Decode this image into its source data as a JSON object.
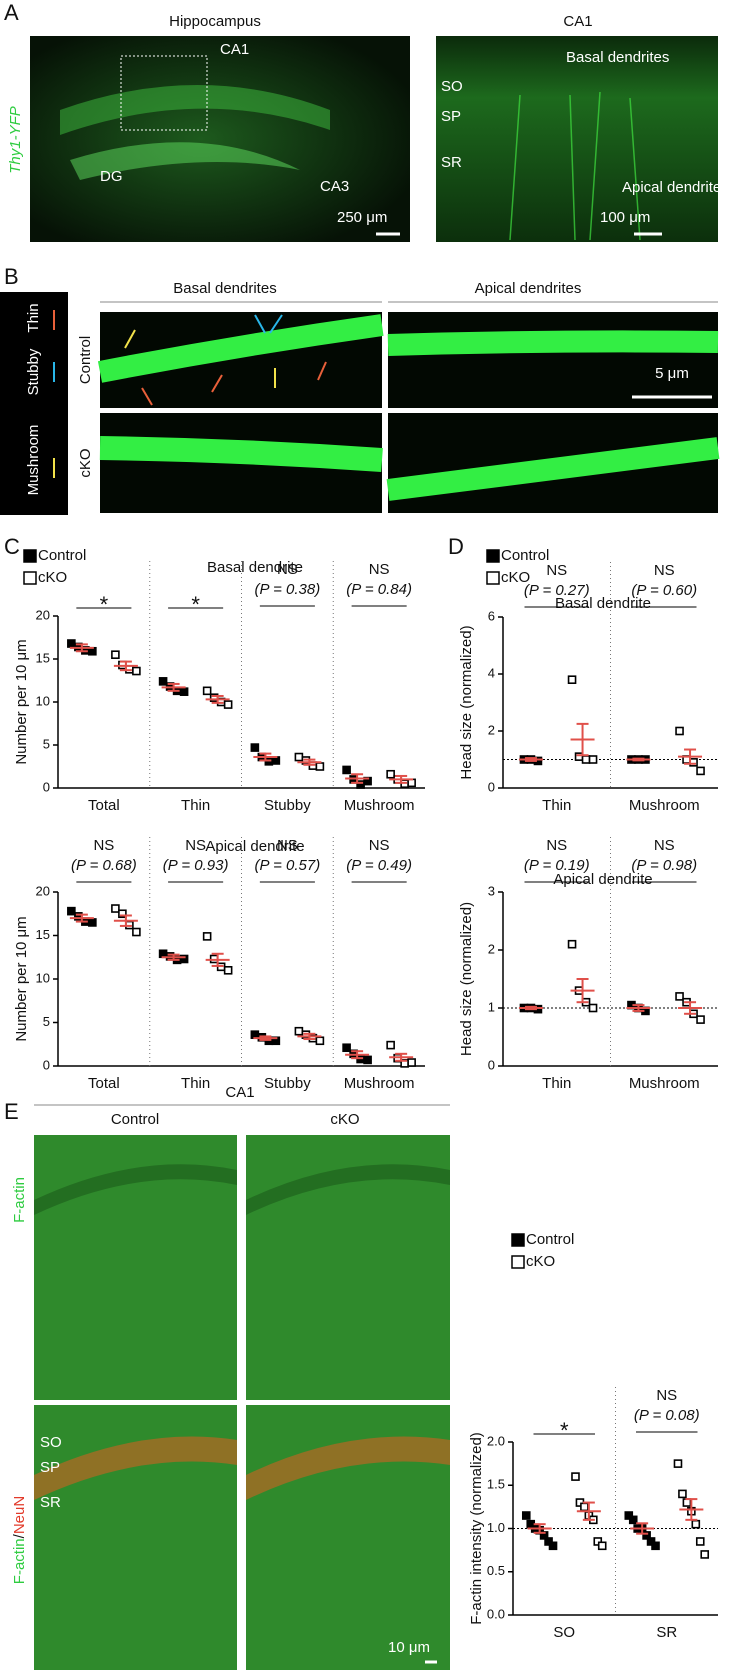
{
  "panel_a": {
    "letter": "A",
    "left_title": "Hippocampus",
    "right_title": "CA1",
    "side_label": "Thy1-YFP",
    "left_labels": [
      "CA1",
      "DG",
      "CA3"
    ],
    "left_scale": "250 μm",
    "right_labels": [
      "Basal dendrites",
      "SO",
      "SP",
      "SR",
      "Apical dendrites"
    ],
    "right_scale": "100 μm"
  },
  "panel_b": {
    "letter": "B",
    "key": [
      "Mushroom",
      "Stubby",
      "Thin"
    ],
    "columns": [
      "Basal dendrites",
      "Apical dendrites"
    ],
    "rows": [
      "Control",
      "cKO"
    ],
    "scale": "5 μm"
  },
  "panel_c": {
    "letter": "C"
  },
  "panel_d": {
    "letter": "D"
  },
  "panel_e": {
    "letter": "E",
    "header": "CA1",
    "columns": [
      "Control",
      "cKO"
    ],
    "row1_label": "F-actin",
    "row2_label": [
      "F-actin",
      "/",
      "NeuN"
    ],
    "layers": [
      "SO",
      "SP",
      "SR"
    ],
    "scale": "10 μm"
  },
  "chart_data": [
    {
      "type": "dot",
      "title": "Basal dendrite",
      "y_label": "Number per 10 μm",
      "categories": [
        "Total",
        "Thin",
        "Stubby",
        "Mushroom"
      ],
      "ylim": [
        0,
        20
      ],
      "yticks": [
        0,
        5,
        10,
        15,
        20
      ],
      "mean_color": "#e0504a",
      "significance": [
        "*",
        "*",
        "NS",
        "NS"
      ],
      "p_labels": [
        null,
        null,
        "(P = 0.38)",
        "(P = 0.84)"
      ],
      "series": [
        {
          "name": "Control",
          "marker": "filled",
          "color": "#000000",
          "values": [
            16.3,
            11.7,
            3.6,
            1.1
          ],
          "errors": [
            0.4,
            0.4,
            0.4,
            0.5
          ],
          "points": [
            [
              16.8,
              16.4,
              16.0,
              15.9
            ],
            [
              12.4,
              11.8,
              11.3,
              11.2
            ],
            [
              4.7,
              3.6,
              3.1,
              3.2
            ],
            [
              2.1,
              1.0,
              0.4,
              0.8
            ]
          ]
        },
        {
          "name": "cKO",
          "marker": "open",
          "color": "#000000",
          "values": [
            14.2,
            10.3,
            3.0,
            1.0
          ],
          "errors": [
            0.5,
            0.4,
            0.3,
            0.4
          ],
          "points": [
            [
              15.5,
              14.3,
              13.8,
              13.6
            ],
            [
              11.3,
              10.5,
              10.0,
              9.7
            ],
            [
              3.6,
              3.2,
              2.6,
              2.5
            ],
            [
              1.6,
              1.0,
              0.5,
              0.6
            ]
          ]
        }
      ]
    },
    {
      "type": "dot",
      "title": "Apical dendrite",
      "y_label": "Number per 10 μm",
      "categories": [
        "Total",
        "Thin",
        "Stubby",
        "Mushroom"
      ],
      "ylim": [
        0,
        20
      ],
      "yticks": [
        0,
        5,
        10,
        15,
        20
      ],
      "mean_color": "#e0504a",
      "significance": [
        "NS",
        "NS",
        "NS",
        "NS"
      ],
      "p_labels": [
        "(P = 0.68)",
        "(P = 0.93)",
        "(P = 0.57)",
        "(P = 0.49)"
      ],
      "series": [
        {
          "marker": "filled",
          "color": "#000000",
          "values": [
            17.0,
            12.5,
            3.2,
            1.3
          ],
          "errors": [
            0.4,
            0.3,
            0.2,
            0.4
          ],
          "points": [
            [
              17.8,
              17.2,
              16.6,
              16.5
            ],
            [
              12.9,
              12.6,
              12.2,
              12.3
            ],
            [
              3.6,
              3.3,
              2.9,
              2.9
            ],
            [
              2.1,
              1.4,
              0.8,
              0.7
            ]
          ]
        },
        {
          "marker": "open",
          "color": "#000000",
          "values": [
            16.7,
            12.2,
            3.4,
            1.0
          ],
          "errors": [
            0.6,
            0.7,
            0.3,
            0.4
          ],
          "points": [
            [
              18.1,
              17.5,
              16.2,
              15.4
            ],
            [
              14.9,
              12.3,
              11.4,
              11.0
            ],
            [
              4.0,
              3.6,
              3.2,
              2.9
            ],
            [
              2.4,
              0.9,
              0.3,
              0.4
            ]
          ]
        }
      ]
    },
    {
      "type": "dot",
      "title": "Basal dendrite",
      "y_label": "Head size (normalized)",
      "categories": [
        "Thin",
        "Mushroom"
      ],
      "ylim": [
        0,
        6
      ],
      "yticks": [
        0,
        2,
        4,
        6
      ],
      "refline": 1,
      "mean_color": "#e0504a",
      "significance": [
        "NS",
        "NS"
      ],
      "p_labels": [
        "(P = 0.27)",
        "(P = 0.60)"
      ],
      "series": [
        {
          "name": "Control",
          "marker": "filled",
          "color": "#000000",
          "values": [
            1.0,
            1.0
          ],
          "errors": [
            0.05,
            0.03
          ],
          "points": [
            [
              1.0,
              1.0,
              0.95
            ],
            [
              1.0,
              1.0,
              1.0
            ]
          ]
        },
        {
          "name": "cKO",
          "marker": "open",
          "color": "#000000",
          "values": [
            1.7,
            1.1
          ],
          "errors": [
            0.55,
            0.25
          ],
          "points": [
            [
              3.8,
              1.1,
              1.0,
              1.0
            ],
            [
              2.0,
              1.0,
              0.9,
              0.6
            ]
          ]
        }
      ]
    },
    {
      "type": "dot",
      "title": "Apical dendrite",
      "y_label": "Head size (normalized)",
      "categories": [
        "Thin",
        "Mushroom"
      ],
      "ylim": [
        0,
        3
      ],
      "yticks": [
        0,
        1,
        2,
        3
      ],
      "refline": 1,
      "mean_color": "#e0504a",
      "significance": [
        "NS",
        "NS"
      ],
      "p_labels": [
        "(P = 0.19)",
        "(P = 0.98)"
      ],
      "series": [
        {
          "marker": "filled",
          "color": "#000000",
          "values": [
            1.0,
            1.0
          ],
          "errors": [
            0.02,
            0.05
          ],
          "points": [
            [
              1.0,
              1.0,
              0.98
            ],
            [
              1.05,
              1.0,
              0.95
            ]
          ]
        },
        {
          "marker": "open",
          "color": "#000000",
          "values": [
            1.3,
            1.0
          ],
          "errors": [
            0.2,
            0.1
          ],
          "points": [
            [
              2.1,
              1.3,
              1.1,
              1.0
            ],
            [
              1.2,
              1.1,
              0.9,
              0.8
            ]
          ]
        }
      ]
    },
    {
      "type": "dot",
      "y_label": "F-actin intensity (normalized)",
      "categories": [
        "SO",
        "SR"
      ],
      "ylim": [
        0,
        2
      ],
      "yticks": [
        {
          "value": 0,
          "label": "0.0"
        },
        {
          "value": 0.5,
          "label": "0.5"
        },
        {
          "value": 1,
          "label": "1.0"
        },
        {
          "value": 1.5,
          "label": "1.5"
        },
        {
          "value": 2,
          "label": "2.0"
        }
      ],
      "refline": 1,
      "mean_color": "#e0504a",
      "significance": [
        "*",
        "NS"
      ],
      "p_labels": [
        null,
        "(P = 0.08)"
      ],
      "series": [
        {
          "name": "Control",
          "marker": "filled",
          "color": "#000000",
          "values": [
            1.0,
            1.0
          ],
          "errors": [
            0.05,
            0.06
          ],
          "points": [
            [
              1.15,
              1.05,
              1.0,
              0.98,
              0.92,
              0.85,
              0.8
            ],
            [
              1.15,
              1.1,
              1.0,
              1.0,
              0.92,
              0.85,
              0.8
            ]
          ]
        },
        {
          "name": "cKO",
          "marker": "open",
          "color": "#000000",
          "values": [
            1.2,
            1.22
          ],
          "errors": [
            0.1,
            0.12
          ],
          "points": [
            [
              1.6,
              1.3,
              1.25,
              1.15,
              1.1,
              0.85,
              0.8
            ],
            [
              1.75,
              1.4,
              1.3,
              1.2,
              1.05,
              0.85,
              0.7
            ]
          ]
        }
      ]
    }
  ]
}
